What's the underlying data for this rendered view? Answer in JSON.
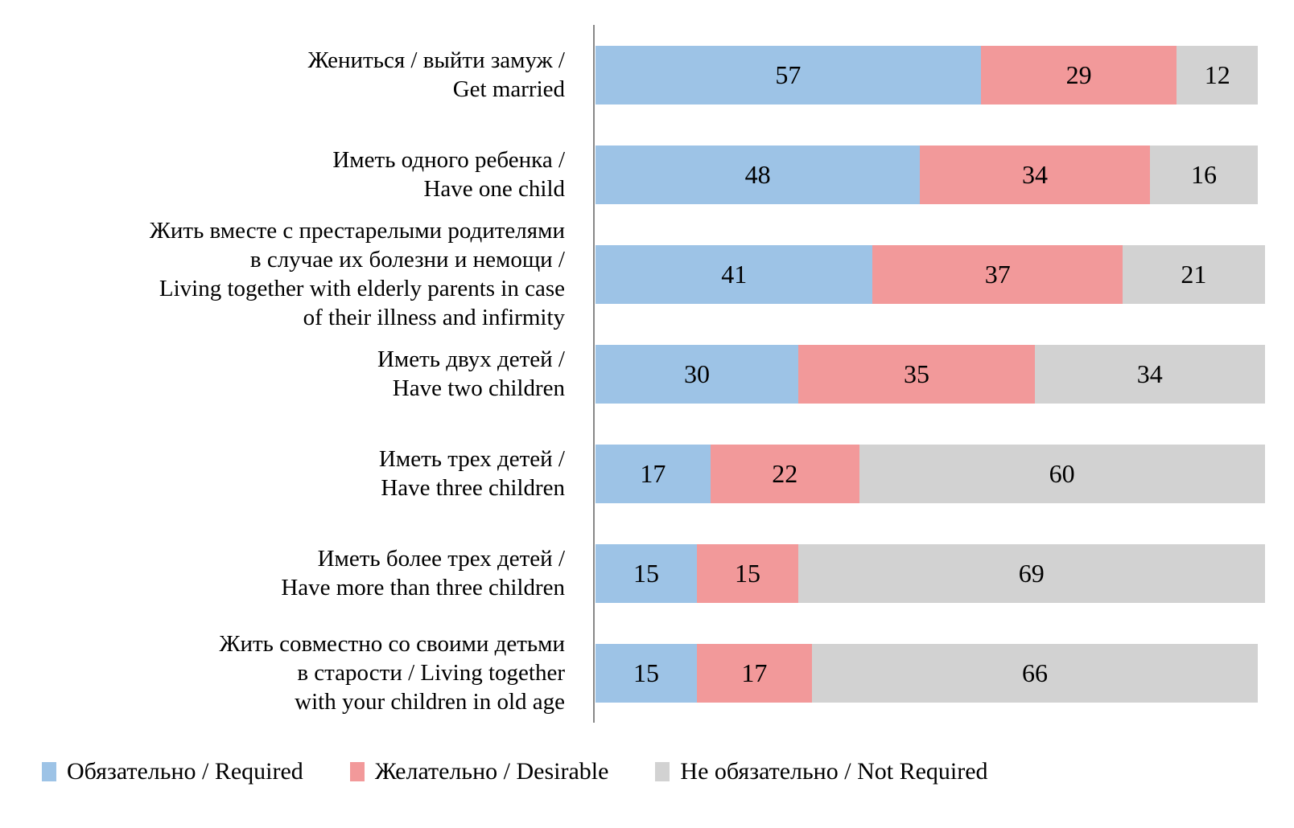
{
  "chart_data": {
    "type": "bar",
    "orientation": "horizontal",
    "stacked": true,
    "title": "",
    "xlabel": "",
    "ylabel": "",
    "xlim": [
      0,
      100
    ],
    "grid": false,
    "legend_position": "bottom",
    "categories": [
      "Жениться / выйти замуж /\nGet married",
      "Иметь одного ребенка /\nHave one child",
      "Жить вместе с престарелыми родителями\nв случае их болезни и немощи /\nLiving together with elderly parents in case\nof their illness and infirmity",
      "Иметь двух детей /\nHave two children",
      "Иметь трех детей /\nHave three children",
      "Иметь более трех детей /\nHave more than three children",
      "Жить совместно со своими детьми\nв старости / Living together\nwith your children in old age"
    ],
    "series": [
      {
        "name": "Обязательно / Required",
        "color": "#9DC3E6",
        "values": [
          57,
          48,
          41,
          30,
          17,
          15,
          15
        ]
      },
      {
        "name": "Желательно / Desirable",
        "color": "#F2999A",
        "values": [
          29,
          34,
          37,
          35,
          22,
          15,
          17
        ]
      },
      {
        "name": "Не обязательно / Not Required",
        "color": "#D2D2D2",
        "values": [
          12,
          16,
          21,
          34,
          60,
          69,
          66
        ]
      }
    ]
  },
  "axis": {
    "color": "#878787"
  }
}
